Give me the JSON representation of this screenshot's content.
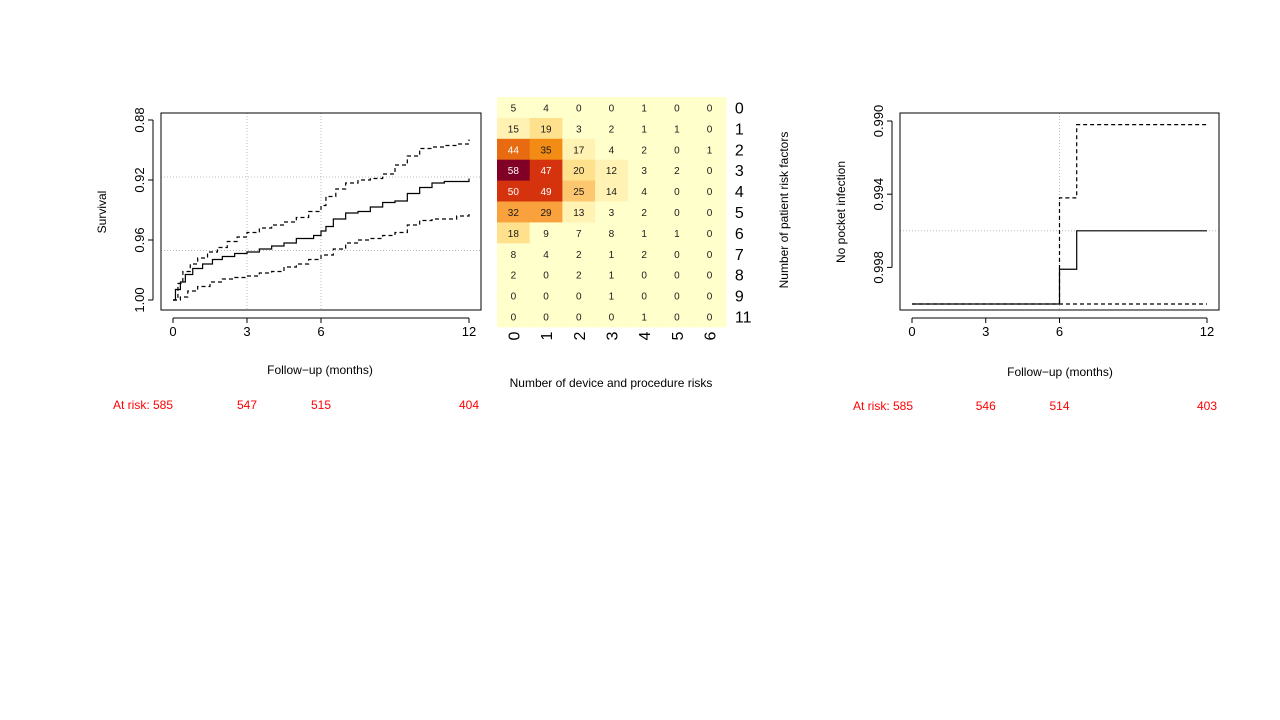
{
  "chart_data": [
    {
      "type": "line",
      "title": "",
      "xlabel": "Follow−up (months)",
      "ylabel": "Survival",
      "xlim": [
        0,
        12
      ],
      "ylim": [
        0.88,
        1.0
      ],
      "x_ticks": [
        0,
        3,
        6,
        12
      ],
      "y_ticks": [
        0.88,
        0.92,
        0.96,
        1.0
      ],
      "y_tick_labels": [
        "0.88",
        "0.92",
        "0.96",
        "1.00"
      ],
      "reference_lines": {
        "h": [
          0.967,
          0.918
        ],
        "v": [
          3,
          6
        ]
      },
      "series": [
        {
          "style": "solid",
          "x": [
            0,
            0.1,
            0.3,
            0.5,
            0.8,
            1.2,
            1.6,
            2.0,
            2.5,
            3.0,
            3.5,
            4.0,
            4.5,
            5.0,
            5.7,
            6.0,
            6.2,
            6.5,
            7.0,
            7.5,
            8.0,
            8.5,
            9.0,
            9.5,
            10.0,
            10.5,
            11.0,
            11.5,
            12.0
          ],
          "y": [
            1.0,
            0.993,
            0.988,
            0.983,
            0.979,
            0.976,
            0.973,
            0.971,
            0.969,
            0.968,
            0.966,
            0.964,
            0.962,
            0.959,
            0.957,
            0.954,
            0.951,
            0.946,
            0.942,
            0.941,
            0.938,
            0.935,
            0.934,
            0.929,
            0.925,
            0.922,
            0.921,
            0.921,
            0.919
          ]
        },
        {
          "style": "dashed",
          "x": [
            0,
            0.3,
            0.6,
            1.0,
            1.5,
            2.0,
            2.5,
            3.0,
            3.5,
            4.0,
            4.5,
            5.0,
            5.5,
            6.0,
            6.5,
            7.0,
            7.5,
            8.0,
            8.5,
            9.0,
            9.5,
            10.0,
            10.5,
            11.0,
            11.5,
            12.0
          ],
          "y": [
            1.0,
            0.998,
            0.994,
            0.991,
            0.988,
            0.986,
            0.985,
            0.984,
            0.982,
            0.981,
            0.978,
            0.976,
            0.973,
            0.97,
            0.966,
            0.962,
            0.96,
            0.959,
            0.957,
            0.955,
            0.95,
            0.947,
            0.946,
            0.946,
            0.944,
            0.942
          ]
        },
        {
          "style": "dashed",
          "x": [
            0,
            0.2,
            0.4,
            0.7,
            1.0,
            1.4,
            1.8,
            2.2,
            2.6,
            3.0,
            3.5,
            4.0,
            4.5,
            5.0,
            5.5,
            6.0,
            6.2,
            6.6,
            7.0,
            7.5,
            8.0,
            8.5,
            9.0,
            9.5,
            10.0,
            10.5,
            11.0,
            11.5,
            12.0
          ],
          "y": [
            1.0,
            0.989,
            0.981,
            0.976,
            0.972,
            0.968,
            0.965,
            0.961,
            0.958,
            0.955,
            0.952,
            0.95,
            0.948,
            0.945,
            0.941,
            0.937,
            0.931,
            0.926,
            0.922,
            0.92,
            0.919,
            0.916,
            0.91,
            0.904,
            0.899,
            0.898,
            0.897,
            0.896,
            0.893
          ]
        }
      ],
      "at_risk_label": "At risk: 585",
      "at_risk": [
        {
          "x": 3,
          "text": "547"
        },
        {
          "x": 6,
          "text": "515"
        },
        {
          "x": 12,
          "text": "404"
        }
      ]
    },
    {
      "type": "heatmap",
      "title": "",
      "xlabel": "Number of device and procedure risks",
      "ylabel": "Number of patient risk factors",
      "columns": [
        "0",
        "1",
        "2",
        "3",
        "4",
        "5",
        "6"
      ],
      "rows": [
        "0",
        "1",
        "2",
        "3",
        "4",
        "5",
        "6",
        "7",
        "8",
        "9",
        "11"
      ],
      "values": [
        [
          5,
          4,
          0,
          0,
          1,
          0,
          0
        ],
        [
          15,
          19,
          3,
          2,
          1,
          1,
          0
        ],
        [
          44,
          35,
          17,
          4,
          2,
          0,
          1
        ],
        [
          58,
          47,
          20,
          12,
          3,
          2,
          0
        ],
        [
          50,
          49,
          25,
          14,
          4,
          0,
          0
        ],
        [
          32,
          29,
          13,
          3,
          2,
          0,
          0
        ],
        [
          18,
          9,
          7,
          8,
          1,
          1,
          0
        ],
        [
          8,
          4,
          2,
          1,
          2,
          0,
          0
        ],
        [
          2,
          0,
          2,
          1,
          0,
          0,
          0
        ],
        [
          0,
          0,
          0,
          1,
          0,
          0,
          0
        ],
        [
          0,
          0,
          0,
          0,
          1,
          0,
          0
        ]
      ],
      "colors": [
        "#FFFFCC",
        "#FFFFCC",
        "#FFF2B2",
        "#FFE08C",
        "#FDC770",
        "#F9A13C",
        "#F38C14",
        "#E86B12",
        "#D5330E",
        "#AF1A24",
        "#800026"
      ],
      "text_colors": [
        "#1a1a1a",
        "#ffffff"
      ]
    },
    {
      "type": "line",
      "title": "",
      "xlabel": "Follow−up (months)",
      "ylabel": "No pocket infection",
      "xlim": [
        0,
        12
      ],
      "ylim": [
        0.99,
        1.0
      ],
      "x_ticks": [
        0,
        3,
        6,
        12
      ],
      "y_ticks": [
        0.99,
        0.994,
        0.998
      ],
      "y_tick_labels": [
        "0.990",
        "0.994",
        "0.998"
      ],
      "reference_lines": {
        "h": [
          0.996
        ],
        "v": [
          6
        ]
      },
      "series": [
        {
          "style": "solid",
          "x": [
            0,
            6.0,
            6.0,
            6.7,
            6.7,
            12.0
          ],
          "y": [
            1.0,
            1.0,
            0.9981,
            0.9981,
            0.996,
            0.996
          ]
        },
        {
          "style": "dashed",
          "x": [
            0,
            12.0
          ],
          "y": [
            1.0,
            1.0
          ]
        },
        {
          "style": "dashed",
          "x": [
            6.0,
            6.0,
            6.7,
            6.7,
            12.0
          ],
          "y": [
            1.0,
            0.9942,
            0.9942,
            0.9902,
            0.9902
          ]
        }
      ],
      "at_risk_label": "At risk: 585",
      "at_risk": [
        {
          "x": 3,
          "text": "546"
        },
        {
          "x": 6,
          "text": "514"
        },
        {
          "x": 12,
          "text": "403"
        }
      ]
    }
  ]
}
